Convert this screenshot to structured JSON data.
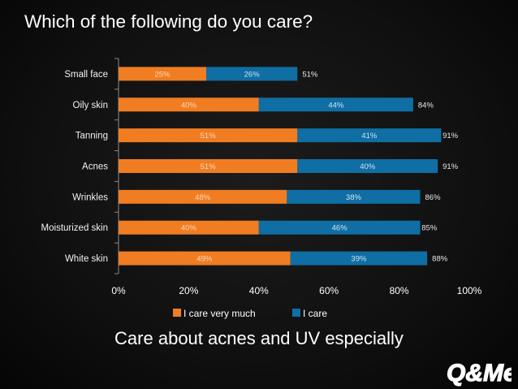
{
  "title": "Which of the following do you care?",
  "subtitle": "Care about acnes and UV especially",
  "logo_text": "Q&Me",
  "chart_data": {
    "type": "bar",
    "orientation": "horizontal",
    "stacked": true,
    "categories": [
      "Small face",
      "Oily skin",
      "Tanning",
      "Acnes",
      "Wrinkles",
      "Moisturized skin",
      "White skin"
    ],
    "series": [
      {
        "name": "I care very much",
        "color": "#f07d22",
        "values": [
          25,
          40,
          51,
          51,
          48,
          40,
          49
        ],
        "labels": [
          "25%",
          "40%",
          "51%",
          "51%",
          "48%",
          "40%",
          "49%"
        ]
      },
      {
        "name": "I care",
        "color": "#0f6ea4",
        "values": [
          26,
          44,
          41,
          40,
          38,
          46,
          39
        ],
        "labels": [
          "26%",
          "44%",
          "41%",
          "40%",
          "38%",
          "46%",
          "39%"
        ]
      }
    ],
    "totals": [
      51,
      84,
      91,
      91,
      86,
      85,
      88
    ],
    "total_labels": [
      "51%",
      "84%",
      "91%",
      "91%",
      "86%",
      "85%",
      "88%"
    ],
    "xlim": [
      0,
      100
    ],
    "xticks": [
      "0%",
      "20%",
      "40%",
      "60%",
      "80%",
      "100%"
    ],
    "grid": false,
    "legend": "bottom"
  }
}
